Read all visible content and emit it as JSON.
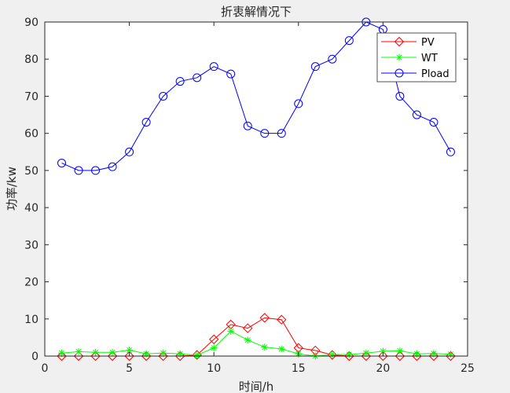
{
  "chart_data": {
    "type": "line",
    "title": "折衷解情况下",
    "xlabel": "时间/h",
    "ylabel": "功率/kw",
    "xlim": [
      0,
      25
    ],
    "ylim": [
      0,
      90
    ],
    "xticks": [
      0,
      5,
      10,
      15,
      20,
      25
    ],
    "yticks": [
      0,
      10,
      20,
      30,
      40,
      50,
      60,
      70,
      80,
      90
    ],
    "grid": false,
    "legend_position": "top-right",
    "x": [
      1,
      2,
      3,
      4,
      5,
      6,
      7,
      8,
      9,
      10,
      11,
      12,
      13,
      14,
      15,
      16,
      17,
      18,
      19,
      20,
      21,
      22,
      23,
      24
    ],
    "series": [
      {
        "name": "PV",
        "color": "#ff0000",
        "marker": "diamond",
        "values": [
          0,
          0,
          0,
          0,
          0,
          0,
          0,
          0,
          0.3,
          4.5,
          8.5,
          7.5,
          10.3,
          9.8,
          2.2,
          1.5,
          0.3,
          0,
          0,
          0,
          0,
          0,
          0,
          0
        ]
      },
      {
        "name": "WT",
        "color": "#00ff00",
        "marker": "star",
        "values": [
          0.8,
          1.2,
          1.0,
          1.0,
          1.6,
          0.6,
          0.8,
          0.6,
          0.2,
          2.2,
          6.7,
          4.3,
          2.4,
          1.9,
          0.6,
          0,
          0.4,
          0.4,
          0.8,
          1.3,
          1.4,
          0.6,
          0.7,
          0.5
        ]
      },
      {
        "name": "Pload",
        "color": "#0000ff",
        "marker": "circle",
        "values": [
          52,
          50,
          50,
          51,
          55,
          63,
          70,
          74,
          75,
          78,
          76,
          62,
          60,
          60,
          68,
          78,
          80,
          85,
          90,
          88,
          70,
          65,
          63,
          55
        ]
      }
    ]
  }
}
